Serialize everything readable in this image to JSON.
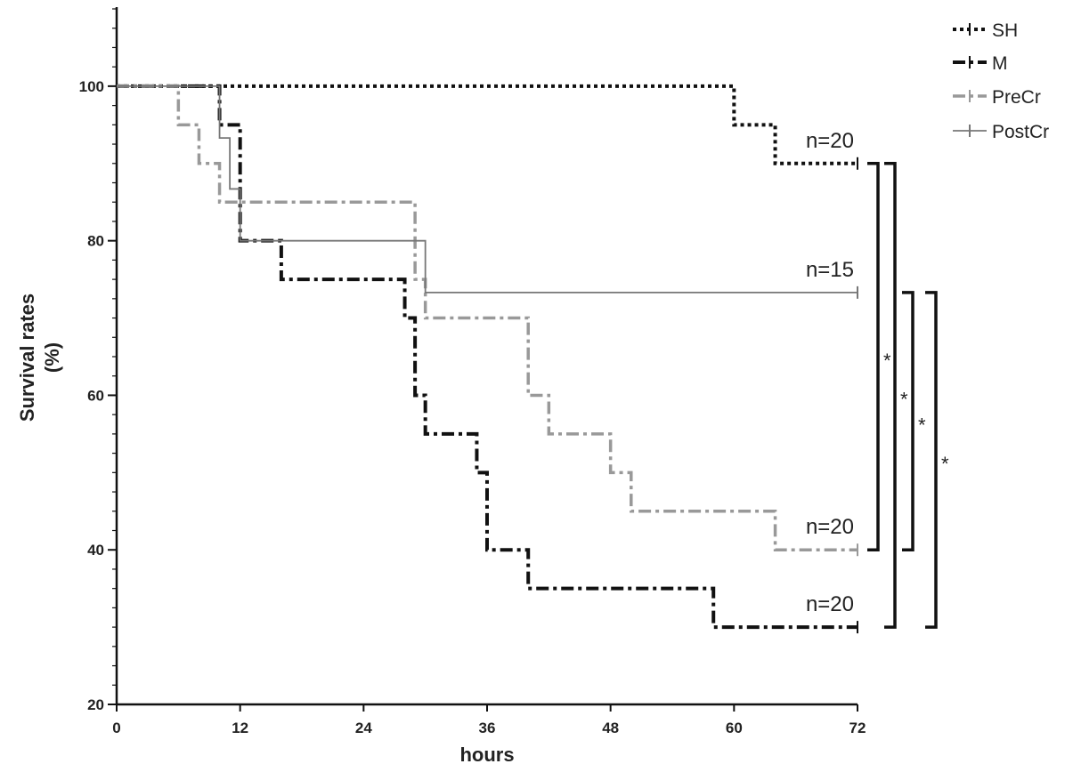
{
  "chart_data": {
    "type": "line",
    "subtype": "kaplan-meier-step",
    "xlabel": "hours",
    "ylabel_lines": [
      "Survival rates",
      "(%)"
    ],
    "xlim": [
      0,
      72
    ],
    "ylim": [
      20,
      110
    ],
    "x_ticks": [
      "0",
      "12",
      "24",
      "36",
      "48",
      "60",
      "72"
    ],
    "x_tick_values": [
      0,
      12,
      24,
      36,
      48,
      60,
      72
    ],
    "y_ticks": [
      "20",
      "40",
      "60",
      "80",
      "100"
    ],
    "y_tick_values": [
      20,
      40,
      60,
      80,
      100
    ],
    "legend_position": "top-right",
    "series": [
      {
        "name": "SH",
        "style": "dotted",
        "color": "#111111",
        "steps": [
          [
            0,
            100
          ],
          [
            60,
            95
          ],
          [
            64,
            90
          ]
        ],
        "end_x": 72,
        "label": "n=20"
      },
      {
        "name": "M",
        "style": "dashdot",
        "color": "#111111",
        "steps": [
          [
            0,
            100
          ],
          [
            10,
            95
          ],
          [
            12,
            80
          ],
          [
            16,
            75
          ],
          [
            28,
            70
          ],
          [
            29,
            60
          ],
          [
            30,
            55
          ],
          [
            35,
            50
          ],
          [
            36,
            40
          ],
          [
            40,
            35
          ],
          [
            58,
            30
          ]
        ],
        "end_x": 72,
        "label": "n=20"
      },
      {
        "name": "PreCr",
        "style": "dashdot",
        "color": "#999999",
        "steps": [
          [
            0,
            100
          ],
          [
            6,
            95
          ],
          [
            8,
            90
          ],
          [
            10,
            85
          ],
          [
            29,
            75
          ],
          [
            30,
            70
          ],
          [
            40,
            60
          ],
          [
            42,
            55
          ],
          [
            48,
            50
          ],
          [
            50,
            45
          ],
          [
            64,
            40
          ]
        ],
        "end_x": 72,
        "label": "n=20"
      },
      {
        "name": "PostCr",
        "style": "solid",
        "color": "#777777",
        "steps": [
          [
            0,
            100
          ],
          [
            10,
            93.3
          ],
          [
            11,
            86.7
          ],
          [
            12,
            80
          ],
          [
            30,
            73.3
          ]
        ],
        "end_x": 72,
        "label": "n=15"
      }
    ],
    "significance_brackets": [
      {
        "from_y": 90,
        "to_y": 40,
        "mark": "*"
      },
      {
        "from_y": 90,
        "to_y": 30,
        "mark": "*"
      },
      {
        "from_y": 73.3,
        "to_y": 40,
        "mark": "*"
      },
      {
        "from_y": 73.3,
        "to_y": 30,
        "mark": "*"
      }
    ]
  }
}
